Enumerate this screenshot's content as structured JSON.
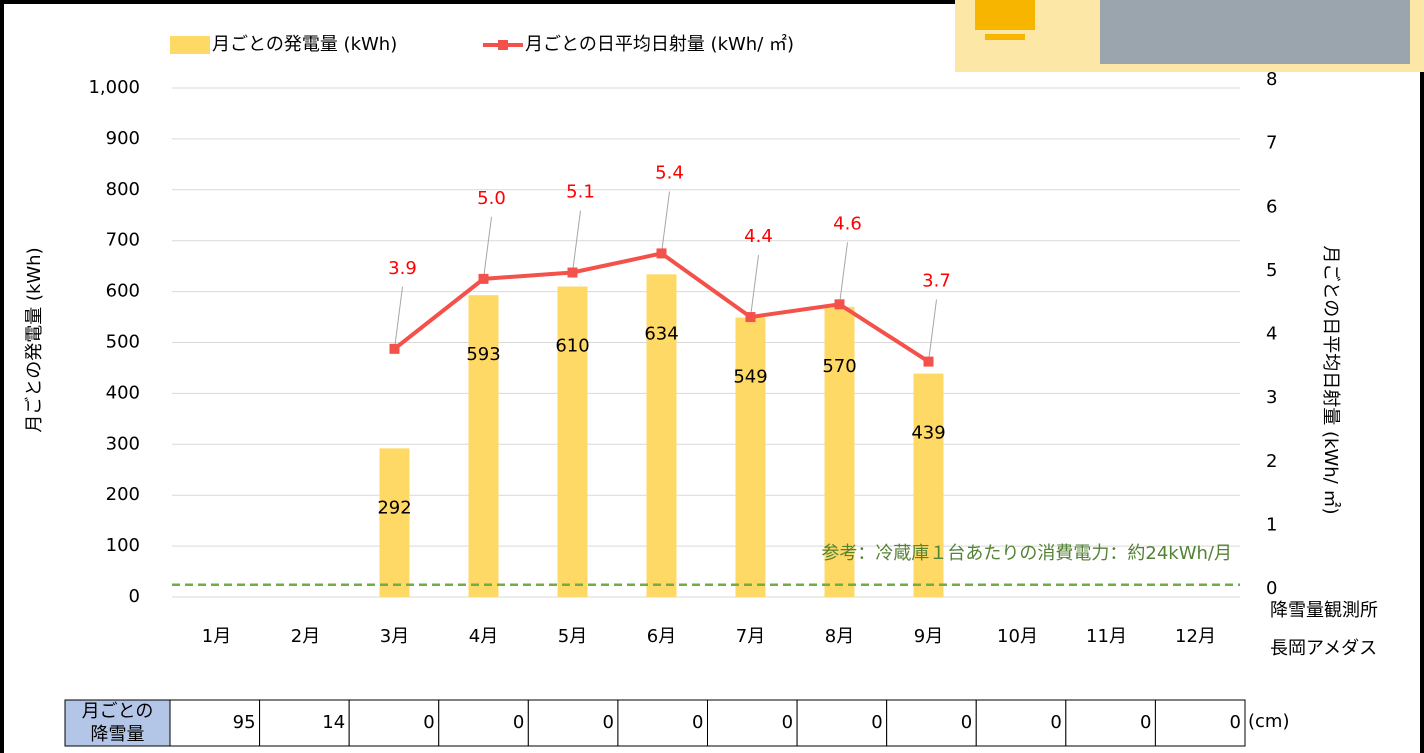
{
  "chart_data": {
    "type": "bar-line",
    "categories": [
      "1月",
      "2月",
      "3月",
      "4月",
      "5月",
      "6月",
      "7月",
      "8月",
      "9月",
      "10月",
      "11月",
      "12月"
    ],
    "series": [
      {
        "name": "月ごとの発電量 (kWh)",
        "type": "bar",
        "color": "#ffd966",
        "values": [
          null,
          null,
          292,
          593,
          610,
          634,
          549,
          570,
          439,
          null,
          null,
          null
        ]
      },
      {
        "name": "月ごとの日平均日射量 (kWh/ ㎡)",
        "type": "line",
        "axis": "y2",
        "color": "#f4514b",
        "values": [
          null,
          null,
          3.9,
          5.0,
          5.1,
          5.4,
          4.4,
          4.6,
          3.7,
          null,
          null,
          null
        ],
        "value_labels": [
          null,
          null,
          "3.9",
          "5.0",
          "5.1",
          "5.4",
          "4.4",
          "4.6",
          "3.7",
          null,
          null,
          null
        ]
      }
    ],
    "ylabel": "月ごとの発電量 (kWh)",
    "y2label": "月ごとの日平均日射量 (kWh/ ㎡)",
    "ylim": [
      0,
      1000
    ],
    "yticks": [
      0,
      100,
      200,
      300,
      400,
      500,
      600,
      700,
      800,
      900,
      {
        "value": 1000,
        "label": "1,000"
      }
    ],
    "y2lim": [
      0,
      8
    ],
    "y2ticks": [
      0,
      1,
      2,
      3,
      4,
      5,
      6,
      7,
      8
    ],
    "grid": true,
    "legend": "top",
    "reference_line": {
      "value": 24,
      "label": "参考：冷蔵庫１台あたりの消費電力：約24kWh/月",
      "color": "#70ad47"
    },
    "annotations": [
      "降雪量観測所",
      "長岡アメダス"
    ]
  },
  "snow_table": {
    "header": [
      "月ごとの",
      "降雪量"
    ],
    "values": [
      95,
      14,
      0,
      0,
      0,
      0,
      0,
      0,
      0,
      0,
      0,
      0
    ],
    "unit": "(cm)"
  }
}
